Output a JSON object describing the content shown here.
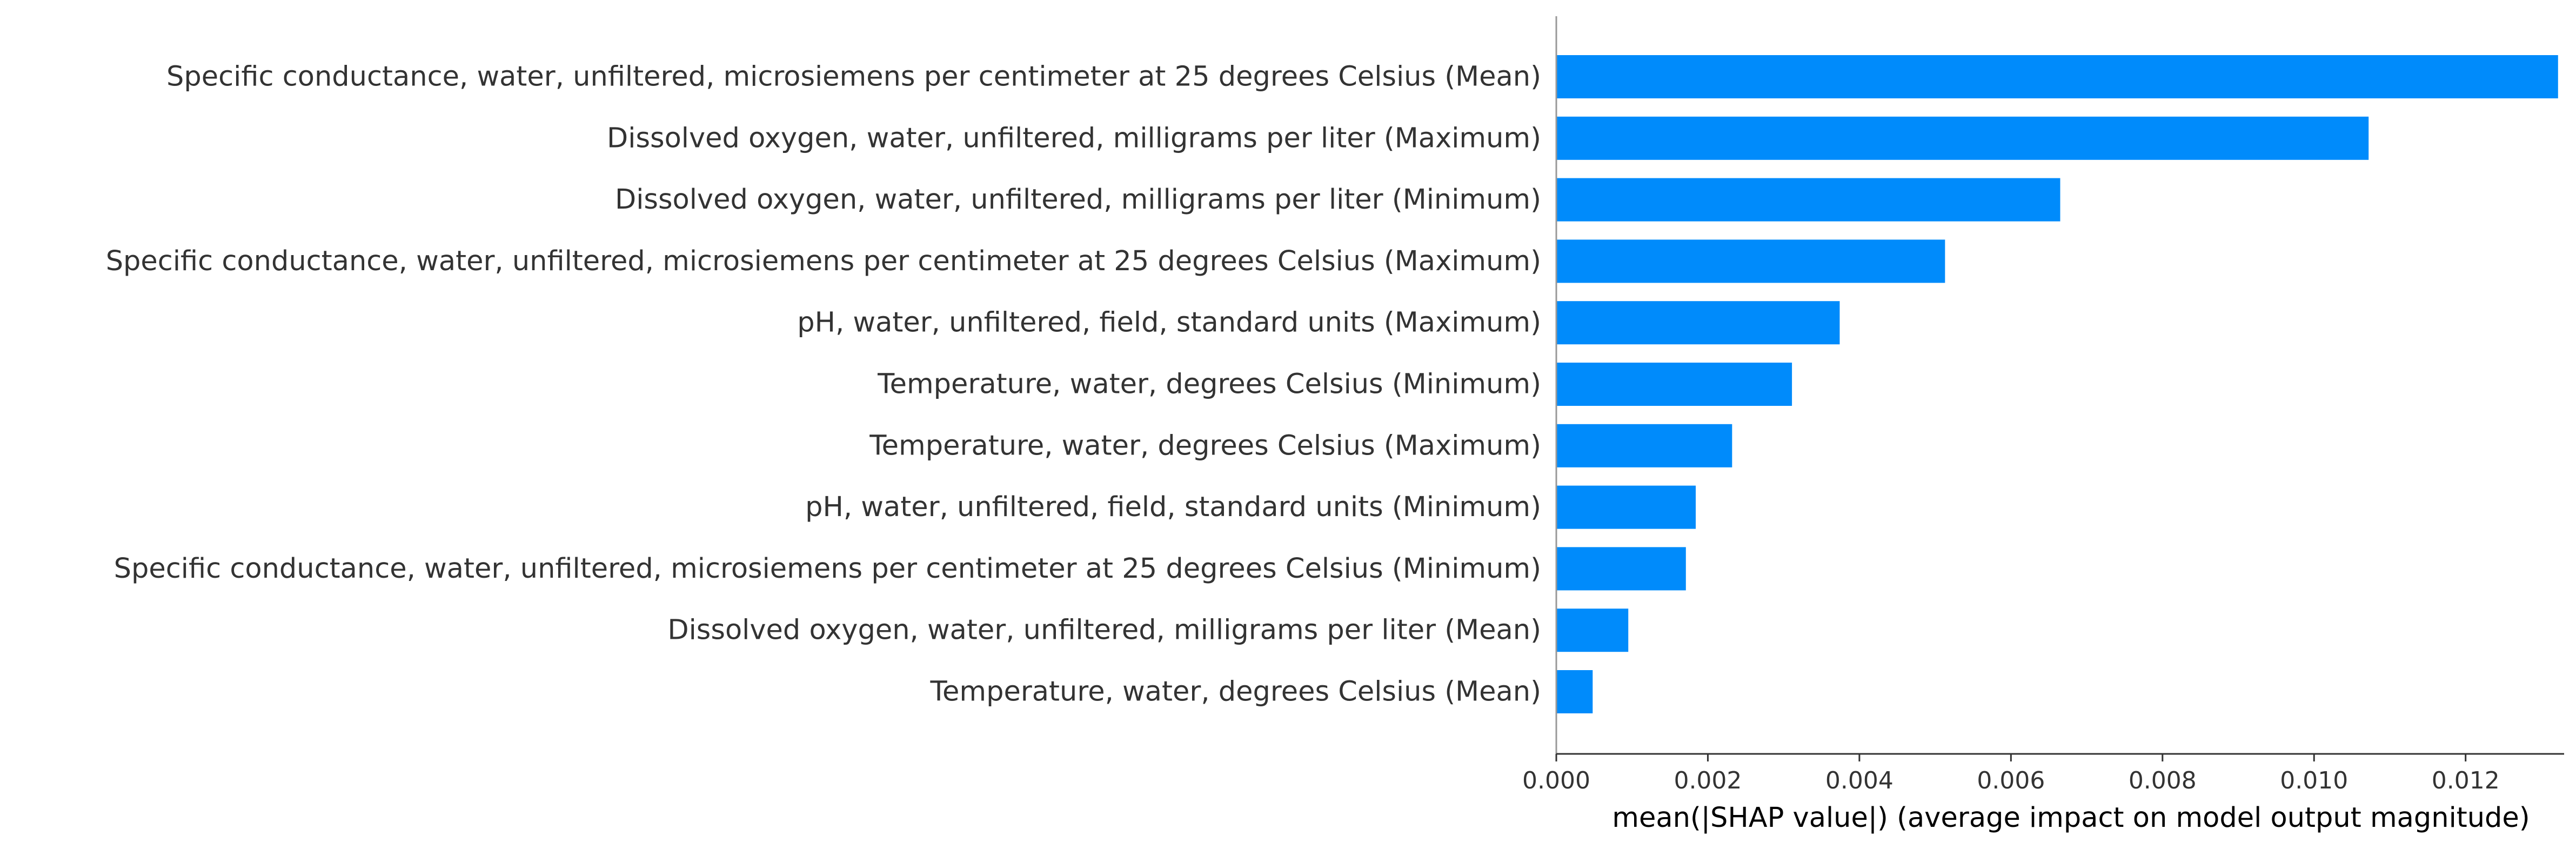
{
  "chart_data": {
    "type": "bar",
    "orientation": "horizontal",
    "title": "",
    "xlabel": "mean(|SHAP value|) (average impact on model output magnitude)",
    "ylabel": "",
    "xlim": [
      0,
      0.0133
    ],
    "grid": false,
    "legend": "none",
    "bar_color": "#008bfb",
    "x_ticks": [
      0,
      0.002,
      0.004,
      0.006,
      0.008,
      0.01,
      0.012
    ],
    "x_tick_labels": [
      "0.000",
      "0.002",
      "0.004",
      "0.006",
      "0.008",
      "0.010",
      "0.012"
    ],
    "categories": [
      "Specific conductance, water, unfiltered, microsiemens per centimeter at 25 degrees Celsius (Mean)",
      "Dissolved oxygen, water, unfiltered, milligrams per liter (Maximum)",
      "Dissolved oxygen, water, unfiltered, milligrams per liter (Minimum)",
      "Specific conductance, water, unfiltered, microsiemens per centimeter at 25 degrees Celsius (Maximum)",
      "pH, water, unfiltered, field, standard units (Maximum)",
      "Temperature, water, degrees Celsius (Minimum)",
      "Temperature, water, degrees Celsius (Maximum)",
      "pH, water, unfiltered, field, standard units (Minimum)",
      "Specific conductance, water, unfiltered, microsiemens per centimeter at 25 degrees Celsius (Minimum)",
      "Dissolved oxygen, water, unfiltered, milligrams per liter (Mean)",
      "Temperature, water, degrees Celsius (Mean)"
    ],
    "values": [
      0.01322,
      0.01072,
      0.00665,
      0.00513,
      0.00374,
      0.00311,
      0.00232,
      0.00184,
      0.00171,
      0.00095,
      0.00048
    ]
  }
}
